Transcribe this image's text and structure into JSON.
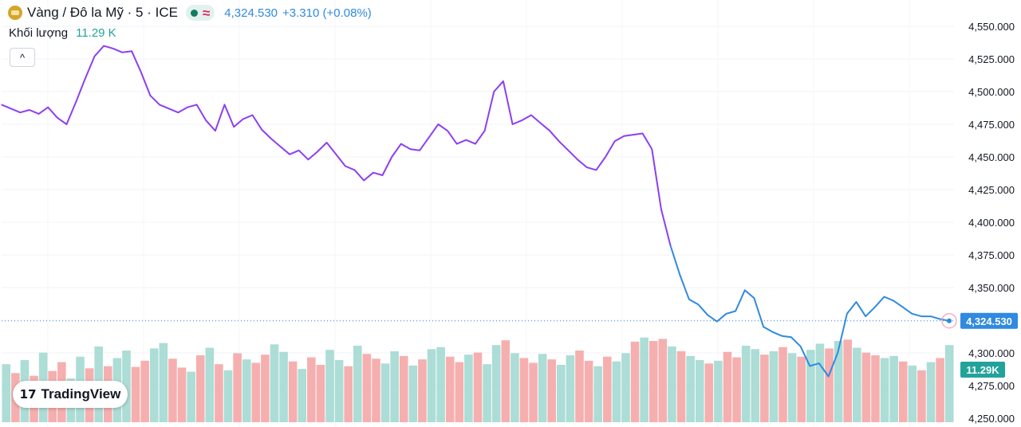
{
  "header": {
    "symbol_title": "Vàng / Đô la Mỹ · 5 · ICE",
    "wave_glyph": "≈",
    "last_price": "4,324.530",
    "change": "+3.310 (+0.08%)"
  },
  "volume": {
    "label": "Khối lượng",
    "value": "11.29 K"
  },
  "controls": {
    "collapse_glyph": "^"
  },
  "branding": {
    "name": "TradingView",
    "mark": "17"
  },
  "colors": {
    "line_upper": "#8d3ff0",
    "line_lower": "#2f8ae0",
    "vol_up": "#a3d9d1",
    "vol_down": "#f5a6a6",
    "price_tag": "#2f8ae0",
    "vol_tag": "#22a39a",
    "accent_red": "#e0245e"
  },
  "chart_data": {
    "type": "line",
    "interval": "5",
    "y_ticks": [
      "4,550.000",
      "4,525.000",
      "4,500.000",
      "4,475.000",
      "4,450.000",
      "4,425.000",
      "4,400.000",
      "4,375.000",
      "4,350.000",
      "4,325.000",
      "4,300.000",
      "4,275.000",
      "4,250.000"
    ],
    "ylim": [
      4250,
      4550
    ],
    "last_price_label": "4,324.530",
    "last_volume_label": "11.29K",
    "series": [
      {
        "values": [
          4490,
          4487,
          4484,
          4486,
          4483,
          4488,
          4480,
          4475,
          4492,
          4510,
          4527,
          4535,
          4533,
          4530,
          4531,
          4515,
          4497,
          4490,
          4487,
          4484,
          4488,
          4490,
          4478,
          4470,
          4490,
          4473,
          4479,
          4482,
          4471,
          4464,
          4458,
          4452,
          4455,
          4448,
          4454,
          4461,
          4452,
          4443,
          4440,
          4432,
          4438,
          4436,
          4450,
          4460,
          4456,
          4455,
          4465,
          4475,
          4470,
          4460,
          4463,
          4460,
          4470,
          4500,
          4508,
          4475,
          4478,
          4482,
          4476,
          4470,
          4462,
          4455,
          4448,
          4442,
          4440,
          4450,
          4462,
          4466,
          4467,
          4468,
          4456,
          4410,
          4382,
          4360,
          4341,
          4337,
          4329,
          4324,
          4330,
          4332,
          4348,
          4342,
          4320,
          4316,
          4313,
          4312,
          4305,
          4290,
          4292,
          4282,
          4300,
          4330,
          4339,
          4328,
          4335,
          4343,
          4340,
          4335,
          4330,
          4328,
          4328,
          4326,
          4324.53
        ]
      }
    ],
    "volume_values": [
      8.5,
      7.2,
      9.1,
      6.8,
      10.2,
      7.5,
      8.8,
      6.4,
      9.6,
      7.9,
      11.1,
      8.2,
      9.4,
      10.5,
      8.1,
      9.0,
      10.8,
      11.6,
      9.3,
      8.0,
      7.4,
      9.8,
      10.9,
      8.5,
      7.6,
      10.1,
      9.2,
      8.7,
      9.9,
      11.4,
      10.3,
      8.9,
      7.8,
      9.5,
      8.4,
      10.6,
      9.1,
      8.2,
      11.2,
      10.0,
      9.3,
      8.6,
      10.4,
      9.7,
      8.3,
      9.2,
      10.7,
      11.0,
      9.6,
      8.8,
      9.9,
      10.2,
      8.5,
      11.3,
      12.0,
      10.1,
      9.4,
      8.7,
      10.0,
      9.2,
      8.4,
      9.8,
      10.5,
      9.0,
      8.2,
      9.6,
      8.9,
      10.1,
      11.8,
      12.4,
      11.9,
      12.2,
      11.1,
      10.4,
      9.7,
      9.1,
      8.6,
      9.0,
      10.3,
      9.5,
      11.2,
      10.7,
      9.9,
      10.4,
      11.0,
      10.1,
      9.6,
      10.6,
      11.5,
      10.8,
      11.9,
      12.1,
      10.9,
      10.2,
      9.8,
      9.4,
      9.7,
      8.9,
      8.3,
      7.6,
      8.8,
      9.4,
      11.29
    ],
    "volume_up": [
      true,
      false,
      true,
      false,
      true,
      false,
      false,
      true,
      true,
      false,
      true,
      false,
      true,
      true,
      false,
      false,
      true,
      true,
      false,
      false,
      true,
      false,
      true,
      false,
      true,
      false,
      true,
      false,
      false,
      true,
      true,
      false,
      true,
      false,
      false,
      true,
      true,
      false,
      true,
      false,
      false,
      true,
      true,
      false,
      true,
      false,
      true,
      true,
      false,
      false,
      true,
      false,
      true,
      true,
      false,
      true,
      false,
      false,
      true,
      false,
      true,
      true,
      false,
      false,
      true,
      false,
      true,
      true,
      false,
      true,
      false,
      false,
      true,
      false,
      true,
      true,
      false,
      true,
      false,
      false,
      true,
      true,
      false,
      true,
      false,
      true,
      false,
      true,
      true,
      false,
      true,
      false,
      true,
      false,
      false,
      true,
      true,
      false,
      true,
      false,
      true,
      false,
      true
    ]
  }
}
